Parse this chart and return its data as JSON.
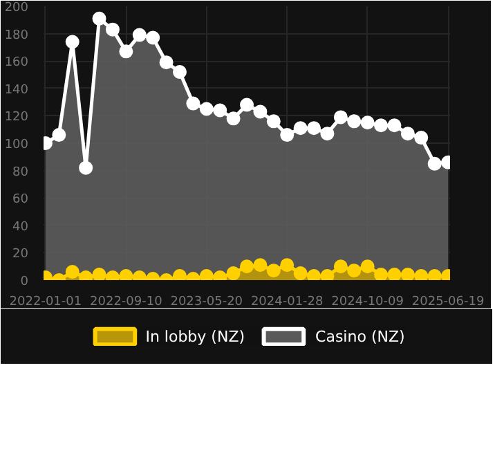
{
  "chart_data": {
    "type": "area",
    "categories": [
      "2022-01-01",
      null,
      null,
      null,
      null,
      null,
      "2022-09-10",
      null,
      null,
      null,
      null,
      null,
      "2023-05-20",
      null,
      null,
      null,
      null,
      null,
      "2024-01-28",
      null,
      null,
      null,
      null,
      null,
      "2024-10-09",
      null,
      null,
      null,
      null,
      null,
      "2025-06-19"
    ],
    "series": [
      {
        "name": "In lobby (NZ)",
        "color": "#ffd000",
        "values": [
          2,
          0,
          6,
          2,
          4,
          2,
          3,
          2,
          1,
          0,
          3,
          1,
          3,
          2,
          5,
          10,
          11,
          7,
          11,
          5,
          3,
          3,
          10,
          7,
          10,
          4,
          4,
          4,
          3,
          3,
          3
        ]
      },
      {
        "name": "Casino (NZ)",
        "color": "#ffffff",
        "values": [
          100,
          106,
          174,
          82,
          191,
          183,
          167,
          179,
          177,
          159,
          152,
          129,
          125,
          124,
          118,
          128,
          123,
          116,
          106,
          111,
          111,
          107,
          119,
          116,
          115,
          113,
          113,
          107,
          104,
          85,
          86
        ]
      }
    ],
    "ylim": [
      0,
      200
    ],
    "yticks": [
      0,
      20,
      40,
      60,
      80,
      100,
      120,
      140,
      160,
      180,
      200
    ],
    "grid": true,
    "legend": "bottom",
    "marker": "circle"
  }
}
